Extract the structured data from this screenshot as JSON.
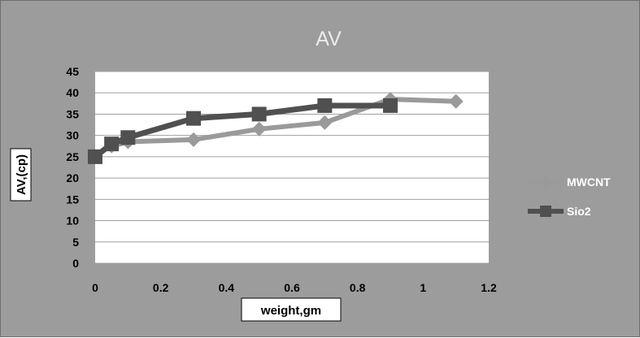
{
  "chart_data": {
    "type": "line",
    "title": "AV",
    "xlabel": "weight,gm",
    "ylabel": "AV,(cp)",
    "xlim": [
      0,
      1.2
    ],
    "ylim": [
      0,
      45
    ],
    "xticks": [
      "0",
      "0.2",
      "0.4",
      "0.6",
      "0.8",
      "1",
      "1.2"
    ],
    "yticks": [
      "0",
      "5",
      "10",
      "15",
      "20",
      "25",
      "30",
      "35",
      "40",
      "45"
    ],
    "grid": "horizontal",
    "legend_position": "right",
    "series": [
      {
        "name": "MWCNT",
        "marker": "diamond",
        "color": "#9a9a9a",
        "x": [
          0.05,
          0.1,
          0.3,
          0.5,
          0.7,
          0.9,
          1.1
        ],
        "y": [
          27.5,
          28.5,
          29,
          31.5,
          33,
          38.5,
          38
        ]
      },
      {
        "name": "Sio2",
        "marker": "square",
        "color": "#505050",
        "x": [
          0,
          0.05,
          0.1,
          0.3,
          0.5,
          0.7,
          0.9
        ],
        "y": [
          25,
          28,
          29.5,
          34,
          35,
          37,
          37
        ]
      }
    ]
  }
}
